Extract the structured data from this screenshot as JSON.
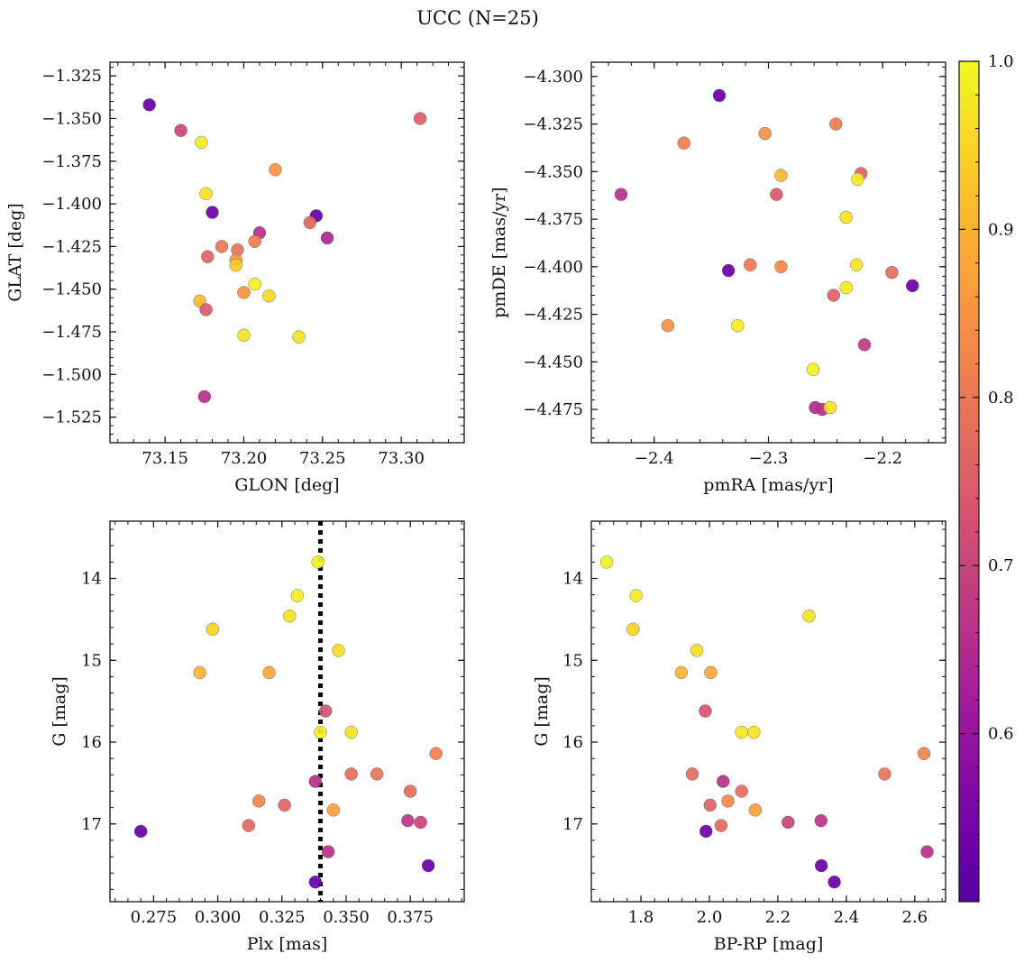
{
  "title": "UCC (N=25)",
  "colorbar": {
    "min": 0.5,
    "max": 1.0,
    "colormap": "plasma",
    "ticks": [
      "0.6",
      "0.7",
      "0.8",
      "0.9",
      "1.0"
    ]
  },
  "chart_data": [
    {
      "type": "scatter",
      "id": "glon-glat",
      "xlabel": "GLON [deg]",
      "ylabel": "GLAT [deg]",
      "xlim": [
        73.115,
        73.34
      ],
      "ylim": [
        -1.54,
        -1.317
      ],
      "xticks": [
        "73.15",
        "73.20",
        "73.25",
        "73.30"
      ],
      "yticks": [
        "−1.325",
        "−1.350",
        "−1.375",
        "−1.400",
        "−1.425",
        "−1.450",
        "−1.475",
        "−1.500",
        "−1.525"
      ],
      "points": [
        {
          "x": 73.14,
          "y": -1.342,
          "p": 0.52
        },
        {
          "x": 73.16,
          "y": -1.357,
          "p": 0.7
        },
        {
          "x": 73.173,
          "y": -1.364,
          "p": 0.98
        },
        {
          "x": 73.312,
          "y": -1.35,
          "p": 0.75
        },
        {
          "x": 73.22,
          "y": -1.38,
          "p": 0.85
        },
        {
          "x": 73.176,
          "y": -1.394,
          "p": 0.97
        },
        {
          "x": 73.18,
          "y": -1.405,
          "p": 0.53
        },
        {
          "x": 73.246,
          "y": -1.407,
          "p": 0.52
        },
        {
          "x": 73.242,
          "y": -1.411,
          "p": 0.77
        },
        {
          "x": 73.21,
          "y": -1.417,
          "p": 0.66
        },
        {
          "x": 73.253,
          "y": -1.42,
          "p": 0.64
        },
        {
          "x": 73.207,
          "y": -1.422,
          "p": 0.81
        },
        {
          "x": 73.186,
          "y": -1.425,
          "p": 0.8
        },
        {
          "x": 73.196,
          "y": -1.427,
          "p": 0.79
        },
        {
          "x": 73.177,
          "y": -1.431,
          "p": 0.76
        },
        {
          "x": 73.195,
          "y": -1.433,
          "p": 0.86
        },
        {
          "x": 73.195,
          "y": -1.436,
          "p": 0.94
        },
        {
          "x": 73.207,
          "y": -1.447,
          "p": 0.99
        },
        {
          "x": 73.2,
          "y": -1.452,
          "p": 0.85
        },
        {
          "x": 73.216,
          "y": -1.454,
          "p": 0.96
        },
        {
          "x": 73.172,
          "y": -1.457,
          "p": 0.91
        },
        {
          "x": 73.176,
          "y": -1.462,
          "p": 0.74
        },
        {
          "x": 73.2,
          "y": -1.477,
          "p": 0.97
        },
        {
          "x": 73.235,
          "y": -1.478,
          "p": 0.97
        },
        {
          "x": 73.175,
          "y": -1.513,
          "p": 0.66
        }
      ]
    },
    {
      "type": "scatter",
      "id": "pmra-pmde",
      "xlabel": "pmRA [mas/yr]",
      "ylabel": "pmDE [mas/yr]",
      "xlim": [
        -2.455,
        -2.145
      ],
      "ylim": [
        -4.4925,
        -4.2925
      ],
      "xticks": [
        "−2.4",
        "−2.3",
        "−2.2"
      ],
      "yticks": [
        "−4.300",
        "−4.325",
        "−4.350",
        "−4.375",
        "−4.400",
        "−4.425",
        "−4.450",
        "−4.475"
      ],
      "points": [
        {
          "x": -2.343,
          "y": -4.31,
          "p": 0.52
        },
        {
          "x": -2.241,
          "y": -4.325,
          "p": 0.81
        },
        {
          "x": -2.303,
          "y": -4.33,
          "p": 0.84
        },
        {
          "x": -2.374,
          "y": -4.335,
          "p": 0.81
        },
        {
          "x": -2.219,
          "y": -4.351,
          "p": 0.76
        },
        {
          "x": -2.289,
          "y": -4.352,
          "p": 0.91
        },
        {
          "x": -2.222,
          "y": -4.354,
          "p": 0.98
        },
        {
          "x": -2.429,
          "y": -4.362,
          "p": 0.66
        },
        {
          "x": -2.293,
          "y": -4.362,
          "p": 0.74
        },
        {
          "x": -2.232,
          "y": -4.374,
          "p": 0.97
        },
        {
          "x": -2.316,
          "y": -4.399,
          "p": 0.8
        },
        {
          "x": -2.289,
          "y": -4.4,
          "p": 0.83
        },
        {
          "x": -2.223,
          "y": -4.399,
          "p": 0.97
        },
        {
          "x": -2.335,
          "y": -4.402,
          "p": 0.53
        },
        {
          "x": -2.192,
          "y": -4.403,
          "p": 0.78
        },
        {
          "x": -2.174,
          "y": -4.41,
          "p": 0.53
        },
        {
          "x": -2.232,
          "y": -4.411,
          "p": 0.98
        },
        {
          "x": -2.243,
          "y": -4.415,
          "p": 0.76
        },
        {
          "x": -2.388,
          "y": -4.431,
          "p": 0.85
        },
        {
          "x": -2.327,
          "y": -4.431,
          "p": 0.98
        },
        {
          "x": -2.216,
          "y": -4.441,
          "p": 0.68
        },
        {
          "x": -2.261,
          "y": -4.454,
          "p": 0.99
        },
        {
          "x": -2.259,
          "y": -4.474,
          "p": 0.65
        },
        {
          "x": -2.253,
          "y": -4.475,
          "p": 0.66
        },
        {
          "x": -2.246,
          "y": -4.474,
          "p": 0.97
        }
      ]
    },
    {
      "type": "scatter",
      "id": "plx-g",
      "xlabel": "Plx [mas]",
      "ylabel": "G [mag]",
      "xlim": [
        0.258,
        0.396
      ],
      "ylim": [
        17.95,
        13.3
      ],
      "inverted_y": true,
      "xticks": [
        "0.275",
        "0.300",
        "0.325",
        "0.350",
        "0.375"
      ],
      "yticks": [
        "14",
        "15",
        "16",
        "17"
      ],
      "vline": {
        "x": 0.34,
        "style": "dotted"
      },
      "points": [
        {
          "x": 0.339,
          "y": 13.8,
          "p": 0.99
        },
        {
          "x": 0.331,
          "y": 14.21,
          "p": 0.98
        },
        {
          "x": 0.328,
          "y": 14.46,
          "p": 0.97
        },
        {
          "x": 0.298,
          "y": 14.62,
          "p": 0.95
        },
        {
          "x": 0.347,
          "y": 14.88,
          "p": 0.96
        },
        {
          "x": 0.293,
          "y": 15.15,
          "p": 0.9
        },
        {
          "x": 0.32,
          "y": 15.15,
          "p": 0.88
        },
        {
          "x": 0.342,
          "y": 15.62,
          "p": 0.73
        },
        {
          "x": 0.34,
          "y": 15.88,
          "p": 0.98
        },
        {
          "x": 0.352,
          "y": 15.88,
          "p": 0.97
        },
        {
          "x": 0.385,
          "y": 16.14,
          "p": 0.82
        },
        {
          "x": 0.352,
          "y": 16.39,
          "p": 0.78
        },
        {
          "x": 0.362,
          "y": 16.39,
          "p": 0.79
        },
        {
          "x": 0.338,
          "y": 16.48,
          "p": 0.66
        },
        {
          "x": 0.375,
          "y": 16.6,
          "p": 0.78
        },
        {
          "x": 0.316,
          "y": 16.72,
          "p": 0.83
        },
        {
          "x": 0.326,
          "y": 16.77,
          "p": 0.76
        },
        {
          "x": 0.345,
          "y": 16.83,
          "p": 0.87
        },
        {
          "x": 0.374,
          "y": 16.96,
          "p": 0.67
        },
        {
          "x": 0.379,
          "y": 16.98,
          "p": 0.7
        },
        {
          "x": 0.312,
          "y": 17.02,
          "p": 0.77
        },
        {
          "x": 0.27,
          "y": 17.09,
          "p": 0.53
        },
        {
          "x": 0.343,
          "y": 17.34,
          "p": 0.66
        },
        {
          "x": 0.382,
          "y": 17.51,
          "p": 0.53
        },
        {
          "x": 0.338,
          "y": 17.71,
          "p": 0.53
        }
      ]
    },
    {
      "type": "scatter",
      "id": "bprp-g",
      "xlabel": "BP-RP [mag]",
      "ylabel": "G [mag]",
      "xlim": [
        1.655,
        2.69
      ],
      "ylim": [
        17.95,
        13.3
      ],
      "inverted_y": true,
      "xticks": [
        "1.8",
        "2.0",
        "2.2",
        "2.4",
        "2.6"
      ],
      "yticks": [
        "14",
        "15",
        "16",
        "17"
      ],
      "points": [
        {
          "x": 1.7,
          "y": 13.8,
          "p": 0.99
        },
        {
          "x": 1.786,
          "y": 14.21,
          "p": 0.98
        },
        {
          "x": 1.777,
          "y": 14.62,
          "p": 0.95
        },
        {
          "x": 2.291,
          "y": 14.46,
          "p": 0.97
        },
        {
          "x": 1.963,
          "y": 14.88,
          "p": 0.96
        },
        {
          "x": 1.918,
          "y": 15.15,
          "p": 0.9
        },
        {
          "x": 2.004,
          "y": 15.15,
          "p": 0.88
        },
        {
          "x": 1.988,
          "y": 15.62,
          "p": 0.73
        },
        {
          "x": 2.094,
          "y": 15.88,
          "p": 0.98
        },
        {
          "x": 2.13,
          "y": 15.88,
          "p": 0.97
        },
        {
          "x": 2.627,
          "y": 16.14,
          "p": 0.82
        },
        {
          "x": 1.95,
          "y": 16.39,
          "p": 0.78
        },
        {
          "x": 2.512,
          "y": 16.39,
          "p": 0.79
        },
        {
          "x": 2.04,
          "y": 16.48,
          "p": 0.66
        },
        {
          "x": 2.094,
          "y": 16.6,
          "p": 0.78
        },
        {
          "x": 2.054,
          "y": 16.72,
          "p": 0.83
        },
        {
          "x": 2.002,
          "y": 16.77,
          "p": 0.76
        },
        {
          "x": 2.134,
          "y": 16.83,
          "p": 0.87
        },
        {
          "x": 2.326,
          "y": 16.96,
          "p": 0.67
        },
        {
          "x": 2.23,
          "y": 16.98,
          "p": 0.7
        },
        {
          "x": 2.034,
          "y": 17.02,
          "p": 0.77
        },
        {
          "x": 1.99,
          "y": 17.09,
          "p": 0.53
        },
        {
          "x": 2.636,
          "y": 17.34,
          "p": 0.66
        },
        {
          "x": 2.327,
          "y": 17.51,
          "p": 0.53
        },
        {
          "x": 2.365,
          "y": 17.71,
          "p": 0.53
        }
      ]
    }
  ]
}
